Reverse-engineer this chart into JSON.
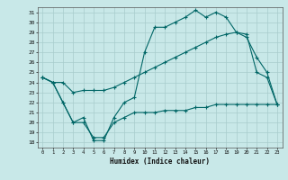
{
  "xlabel": "Humidex (Indice chaleur)",
  "bg_color": "#c8e8e8",
  "grid_color": "#a8cccc",
  "line_color": "#006666",
  "xlim": [
    -0.5,
    23.5
  ],
  "ylim": [
    17.5,
    31.5
  ],
  "yticks": [
    18,
    19,
    20,
    21,
    22,
    23,
    24,
    25,
    26,
    27,
    28,
    29,
    30,
    31
  ],
  "xticks": [
    0,
    1,
    2,
    3,
    4,
    5,
    6,
    7,
    8,
    9,
    10,
    11,
    12,
    13,
    14,
    15,
    16,
    17,
    18,
    19,
    20,
    21,
    22,
    23
  ],
  "line1_x": [
    0,
    1,
    2,
    3,
    4,
    5,
    6,
    7,
    8,
    9,
    10,
    11,
    12,
    13,
    14,
    15,
    16,
    17,
    18,
    19,
    20,
    21,
    22,
    23
  ],
  "line1_y": [
    24.5,
    24.0,
    22.0,
    20.0,
    20.5,
    18.2,
    18.2,
    20.5,
    22.0,
    22.5,
    27.0,
    29.5,
    29.5,
    30.0,
    30.5,
    31.2,
    30.5,
    31.0,
    30.5,
    29.0,
    28.8,
    25.0,
    24.5,
    21.8
  ],
  "line2_x": [
    0,
    1,
    2,
    3,
    4,
    5,
    6,
    7,
    8,
    9,
    10,
    11,
    12,
    13,
    14,
    15,
    16,
    17,
    18,
    19,
    20,
    21,
    22,
    23
  ],
  "line2_y": [
    24.5,
    24.0,
    24.0,
    23.0,
    23.2,
    23.2,
    23.2,
    23.5,
    24.0,
    24.5,
    25.0,
    25.5,
    26.0,
    26.5,
    27.0,
    27.5,
    28.0,
    28.5,
    28.8,
    29.0,
    28.5,
    26.5,
    25.0,
    21.8
  ],
  "line3_x": [
    0,
    1,
    2,
    3,
    4,
    5,
    6,
    7,
    8,
    9,
    10,
    11,
    12,
    13,
    14,
    15,
    16,
    17,
    18,
    19,
    20,
    21,
    22,
    23
  ],
  "line3_y": [
    24.5,
    24.0,
    22.0,
    20.0,
    20.0,
    18.5,
    18.5,
    20.0,
    20.5,
    21.0,
    21.0,
    21.0,
    21.2,
    21.2,
    21.2,
    21.5,
    21.5,
    21.8,
    21.8,
    21.8,
    21.8,
    21.8,
    21.8,
    21.8
  ]
}
